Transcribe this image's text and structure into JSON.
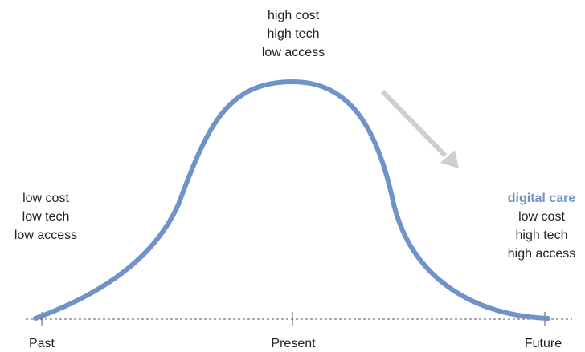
{
  "colors": {
    "curve": "#6f93c8",
    "highlight": "#6f93c8",
    "arrow": "#cfcfcf",
    "baseline": "#555555",
    "text": "#222222"
  },
  "timeline": {
    "past": "Past",
    "present": "Present",
    "future": "Future"
  },
  "stages": {
    "past": [
      "low cost",
      "low tech",
      "low access"
    ],
    "present": [
      "high cost",
      "high tech",
      "low access"
    ],
    "future": {
      "title": "digital care",
      "lines": [
        "low cost",
        "high tech",
        "high access"
      ]
    }
  }
}
